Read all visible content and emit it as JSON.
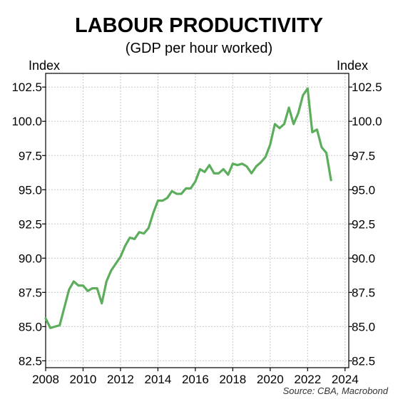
{
  "chart_data": {
    "type": "line",
    "title": "LABOUR PRODUCTIVITY",
    "subtitle": "(GDP per hour worked)",
    "ylabel_left": "Index",
    "ylabel_right": "Index",
    "xlim": [
      2008,
      2024.2
    ],
    "ylim": [
      82,
      103.5
    ],
    "x_ticks": [
      2008,
      2010,
      2012,
      2014,
      2016,
      2018,
      2020,
      2022,
      2024
    ],
    "y_ticks": [
      "82.5",
      "85.0",
      "87.5",
      "90.0",
      "92.5",
      "95.0",
      "97.5",
      "100.0",
      "102.5"
    ],
    "grid": true,
    "source": "Source: CBA, Macrobond",
    "line_color": "#5cad5c",
    "series": [
      {
        "x": [
          2008.0,
          2008.25,
          2008.5,
          2008.75,
          2009.0,
          2009.25,
          2009.5,
          2009.75,
          2010.0,
          2010.25,
          2010.5,
          2010.75,
          2011.0,
          2011.25,
          2011.5,
          2011.75,
          2012.0,
          2012.25,
          2012.5,
          2012.75,
          2013.0,
          2013.25,
          2013.5,
          2013.75,
          2014.0,
          2014.25,
          2014.5,
          2014.75,
          2015.0,
          2015.25,
          2015.5,
          2015.75,
          2016.0,
          2016.25,
          2016.5,
          2016.75,
          2017.0,
          2017.25,
          2017.5,
          2017.75,
          2018.0,
          2018.25,
          2018.5,
          2018.75,
          2019.0,
          2019.25,
          2019.5,
          2019.75,
          2020.0,
          2020.25,
          2020.5,
          2020.75,
          2021.0,
          2021.25,
          2021.5,
          2021.75,
          2022.0,
          2022.25,
          2022.5,
          2022.75,
          2023.0,
          2023.25
        ],
        "values": [
          85.6,
          84.9,
          85.0,
          85.1,
          86.4,
          87.7,
          88.3,
          88.0,
          88.0,
          87.6,
          87.8,
          87.8,
          86.7,
          88.3,
          89.1,
          89.6,
          90.1,
          90.9,
          91.5,
          91.4,
          91.9,
          91.8,
          92.2,
          93.3,
          94.2,
          94.2,
          94.4,
          94.9,
          94.7,
          94.7,
          95.1,
          95.1,
          95.6,
          96.5,
          96.3,
          96.8,
          96.2,
          96.2,
          96.5,
          96.1,
          96.9,
          96.8,
          96.9,
          96.7,
          96.2,
          96.7,
          97.0,
          97.4,
          98.3,
          99.8,
          99.5,
          99.8,
          101.0,
          99.8,
          100.6,
          101.9,
          102.4,
          99.2,
          99.4,
          98.1,
          97.7,
          95.7
        ]
      }
    ]
  }
}
